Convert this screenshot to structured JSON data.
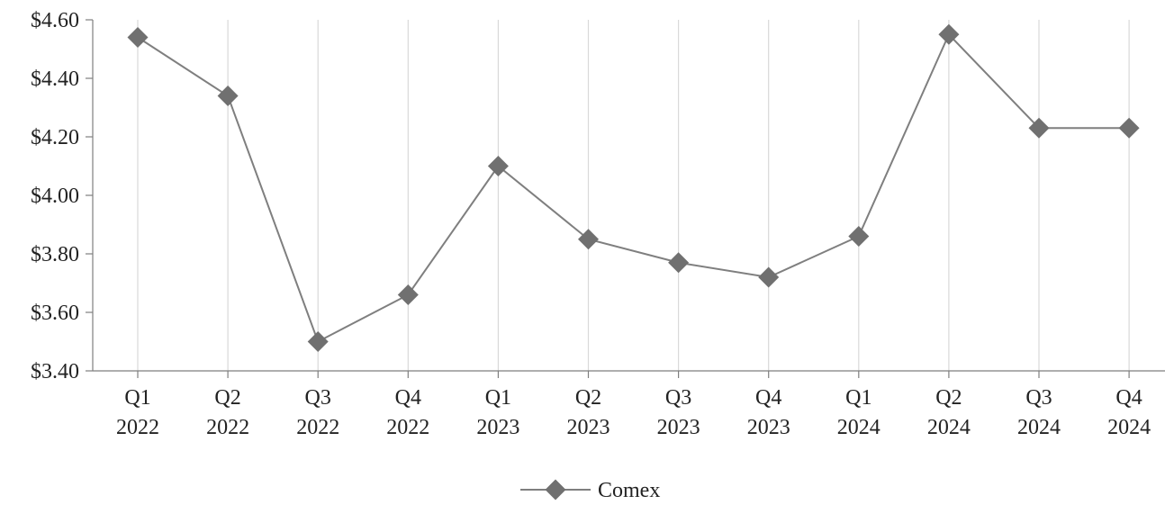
{
  "chart_data": {
    "type": "line",
    "title": "",
    "xlabel": "",
    "ylabel": "",
    "categories": [
      [
        "Q1",
        "2022"
      ],
      [
        "Q2",
        "2022"
      ],
      [
        "Q3",
        "2022"
      ],
      [
        "Q4",
        "2022"
      ],
      [
        "Q1",
        "2023"
      ],
      [
        "Q2",
        "2023"
      ],
      [
        "Q3",
        "2023"
      ],
      [
        "Q4",
        "2023"
      ],
      [
        "Q1",
        "2024"
      ],
      [
        "Q2",
        "2024"
      ],
      [
        "Q3",
        "2024"
      ],
      [
        "Q4",
        "2024"
      ]
    ],
    "series": [
      {
        "name": "Comex",
        "values": [
          4.54,
          4.34,
          3.5,
          3.66,
          4.1,
          3.85,
          3.77,
          3.72,
          3.86,
          4.55,
          4.23,
          4.23
        ],
        "marker": "diamond"
      }
    ],
    "ylim": [
      3.4,
      4.6
    ],
    "yticks": [
      4.6,
      4.4,
      4.2,
      4.0,
      3.8,
      3.6,
      3.4
    ],
    "ytick_labels": [
      "$4.60",
      "$4.40",
      "$4.20",
      "$4.00",
      "$3.80",
      "$3.60",
      "$3.40"
    ],
    "grid": "vertical",
    "legend_position": "bottom-center",
    "colors": {
      "series": "#707070",
      "line": "#7f7f7f",
      "grid": "#d9d9d9",
      "axis": "#7f7f7f"
    }
  }
}
